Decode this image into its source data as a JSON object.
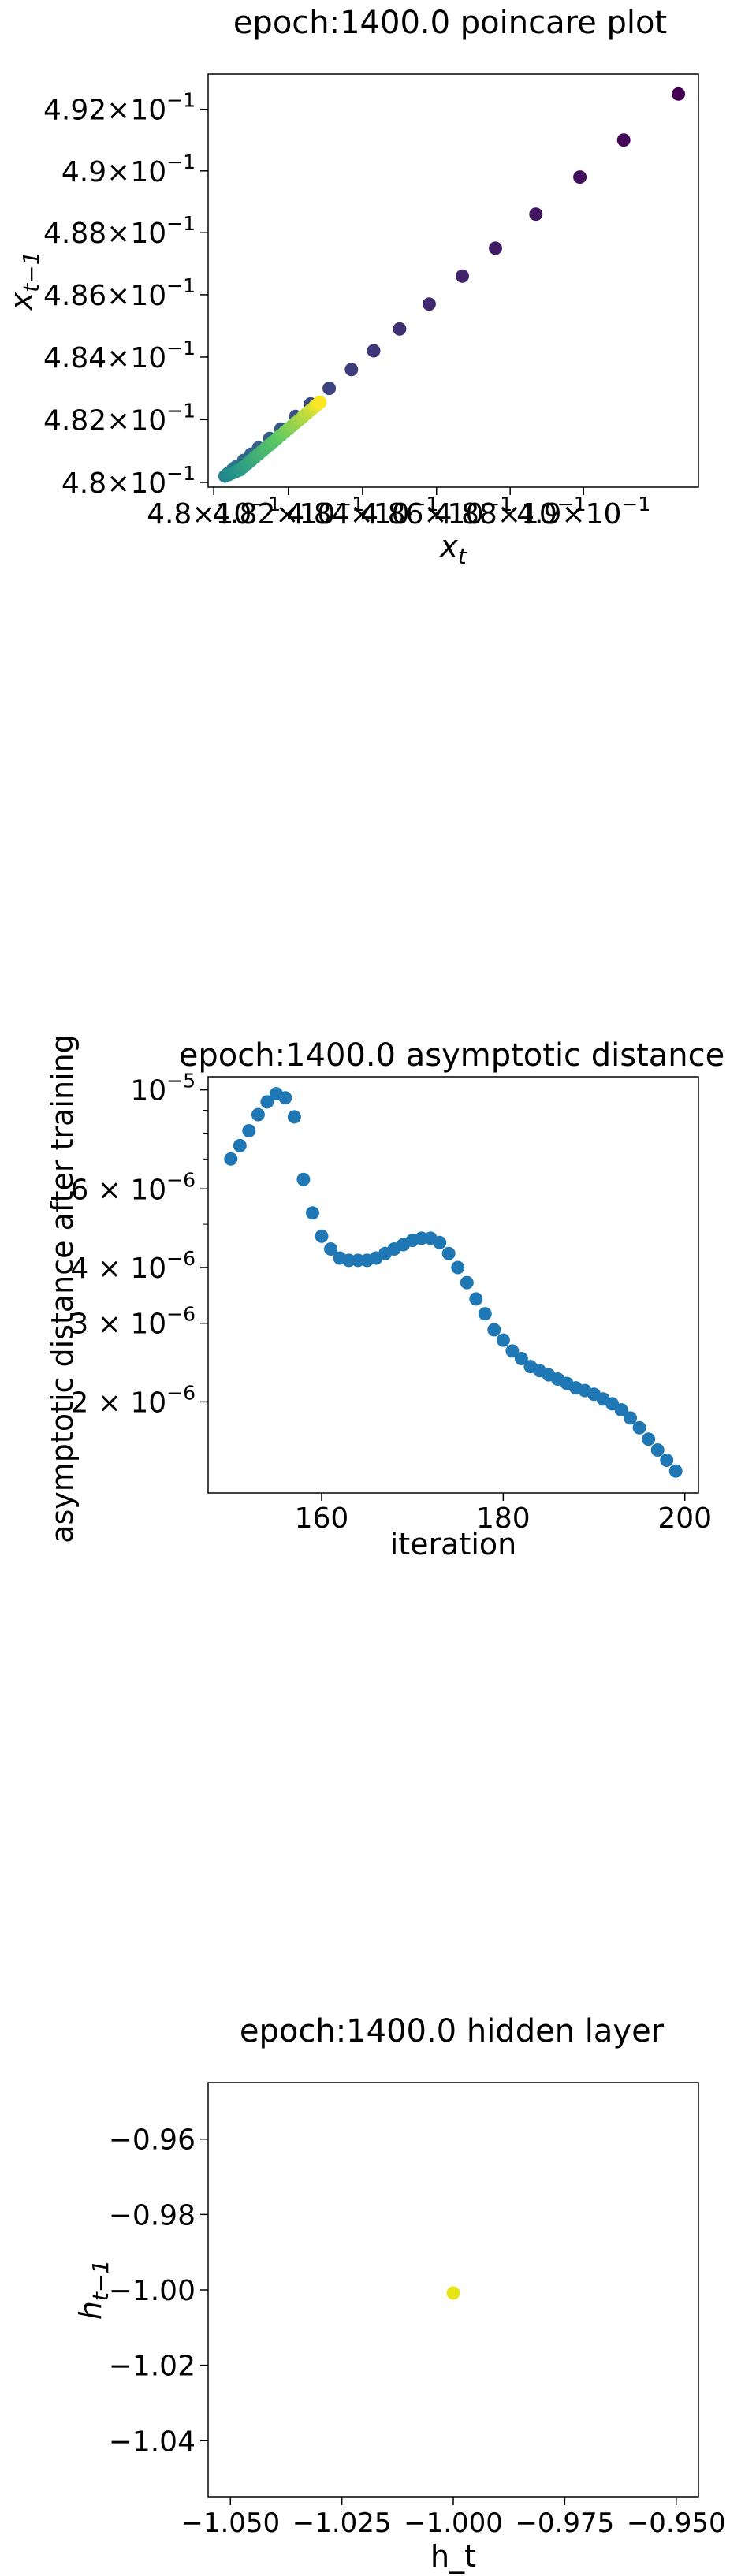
{
  "chart_data": [
    {
      "type": "scatter",
      "title": "epoch:1400.0 poincare plot",
      "xlabel": "x_t",
      "ylabel": "x_{t-1}",
      "xscale": "log",
      "yscale": "log",
      "xlim": [
        0.47985,
        0.49315
      ],
      "ylim": [
        0.47985,
        0.49315
      ],
      "xticks": [
        {
          "value": 0.48,
          "mant": "4.8",
          "exp": "−1"
        },
        {
          "value": 0.482,
          "mant": "4.82",
          "exp": "−1"
        },
        {
          "value": 0.484,
          "mant": "4.84",
          "exp": "−1"
        },
        {
          "value": 0.486,
          "mant": "4.86",
          "exp": "−1"
        },
        {
          "value": 0.488,
          "mant": "4.88",
          "exp": "−1"
        },
        {
          "value": 0.49,
          "mant": "4.9",
          "exp": "−1"
        }
      ],
      "yticks": [
        {
          "value": 0.48,
          "mant": "4.8",
          "exp": "−1"
        },
        {
          "value": 0.482,
          "mant": "4.82",
          "exp": "−1"
        },
        {
          "value": 0.484,
          "mant": "4.84",
          "exp": "−1"
        },
        {
          "value": 0.486,
          "mant": "4.86",
          "exp": "−1"
        },
        {
          "value": 0.488,
          "mant": "4.88",
          "exp": "−1"
        },
        {
          "value": 0.49,
          "mant": "4.9",
          "exp": "−1"
        },
        {
          "value": 0.492,
          "mant": "4.92",
          "exp": "−1"
        }
      ],
      "colormap": "viridis",
      "grid": false,
      "points": [
        [
          0.4926,
          0.4925
        ],
        [
          0.4911,
          0.491
        ],
        [
          0.4899,
          0.4898
        ],
        [
          0.4887,
          0.4886
        ],
        [
          0.4876,
          0.4875
        ],
        [
          0.4867,
          0.4866
        ],
        [
          0.4858,
          0.4857
        ],
        [
          0.485,
          0.4849
        ],
        [
          0.4843,
          0.4842
        ],
        [
          0.4837,
          0.4836
        ],
        [
          0.4831,
          0.483
        ],
        [
          0.4826,
          0.4825
        ],
        [
          0.4822,
          0.4821
        ],
        [
          0.4818,
          0.4817
        ],
        [
          0.4815,
          0.4814
        ],
        [
          0.4812,
          0.4811
        ],
        [
          0.481,
          0.4809
        ],
        [
          0.4808,
          0.4807
        ],
        [
          0.4806,
          0.4805
        ],
        [
          0.4805,
          0.4804
        ],
        [
          0.4804,
          0.4803
        ],
        [
          0.48035,
          0.48025
        ],
        [
          0.4803,
          0.4802
        ],
        [
          0.4804,
          0.48025
        ],
        [
          0.4805,
          0.4803
        ],
        [
          0.4806,
          0.48035
        ],
        [
          0.4807,
          0.4804
        ],
        [
          0.4808,
          0.4805
        ],
        [
          0.4809,
          0.4806
        ],
        [
          0.481,
          0.4807
        ],
        [
          0.4811,
          0.4808
        ],
        [
          0.4812,
          0.4809
        ],
        [
          0.4813,
          0.481
        ],
        [
          0.4814,
          0.4811
        ],
        [
          0.4815,
          0.4812
        ],
        [
          0.4816,
          0.4813
        ],
        [
          0.4817,
          0.4814
        ],
        [
          0.4818,
          0.4815
        ],
        [
          0.4819,
          0.4816
        ],
        [
          0.482,
          0.4817
        ],
        [
          0.4821,
          0.4818
        ],
        [
          0.4822,
          0.4819
        ],
        [
          0.4823,
          0.482
        ],
        [
          0.4824,
          0.4821
        ],
        [
          0.4825,
          0.4822
        ],
        [
          0.4826,
          0.4823
        ],
        [
          0.4827,
          0.4824
        ],
        [
          0.48275,
          0.48245
        ],
        [
          0.4828,
          0.4825
        ],
        [
          0.48285,
          0.48255
        ]
      ]
    },
    {
      "type": "scatter",
      "title": "epoch:1400.0 asymptotic distance",
      "xlabel": "iteration",
      "ylabel": "asymptotic distance after training",
      "yscale": "log",
      "xlim": [
        147.5,
        201.5
      ],
      "ylim": [
        1.25e-06,
        1.07e-05
      ],
      "xticks": [
        {
          "value": 160,
          "label": "160"
        },
        {
          "value": 180,
          "label": "180"
        },
        {
          "value": 200,
          "label": "200"
        }
      ],
      "yticks": [
        {
          "value": 1e-05,
          "mant": "10",
          "exp": "−5"
        },
        {
          "value": 6e-06,
          "mant": "6 × 10",
          "exp": "−6"
        },
        {
          "value": 4e-06,
          "mant": "4 × 10",
          "exp": "−6"
        },
        {
          "value": 3e-06,
          "mant": "3 × 10",
          "exp": "−6"
        },
        {
          "value": 2e-06,
          "mant": "2 × 10",
          "exp": "−6"
        }
      ],
      "color": "#1f77b4",
      "grid": false,
      "x": [
        150,
        151,
        152,
        153,
        154,
        155,
        156,
        157,
        158,
        159,
        160,
        161,
        162,
        163,
        164,
        165,
        166,
        167,
        168,
        169,
        170,
        171,
        172,
        173,
        174,
        175,
        176,
        177,
        178,
        179,
        180,
        181,
        182,
        183,
        184,
        185,
        186,
        187,
        188,
        189,
        190,
        191,
        192,
        193,
        194,
        195,
        196,
        197,
        198,
        199
      ],
      "y": [
        7e-06,
        7.5e-06,
        8.1e-06,
        8.8e-06,
        9.4e-06,
        9.8e-06,
        9.6e-06,
        8.7e-06,
        6.3e-06,
        5.3e-06,
        4.7e-06,
        4.4e-06,
        4.2e-06,
        4.15e-06,
        4.15e-06,
        4.15e-06,
        4.2e-06,
        4.3e-06,
        4.4e-06,
        4.5e-06,
        4.6e-06,
        4.65e-06,
        4.65e-06,
        4.55e-06,
        4.3e-06,
        4e-06,
        3.7e-06,
        3.4e-06,
        3.15e-06,
        2.9e-06,
        2.75e-06,
        2.6e-06,
        2.5e-06,
        2.4e-06,
        2.35e-06,
        2.3e-06,
        2.25e-06,
        2.2e-06,
        2.15e-06,
        2.12e-06,
        2.08e-06,
        2.03e-06,
        1.98e-06,
        1.92e-06,
        1.84e-06,
        1.75e-06,
        1.65e-06,
        1.56e-06,
        1.48e-06,
        1.4e-06
      ]
    },
    {
      "type": "scatter",
      "title": "epoch:1400.0 hidden layer",
      "xlabel": "h_t",
      "ylabel": "h_{t-1}",
      "xlim": [
        -1.055,
        -0.945
      ],
      "ylim": [
        -1.055,
        -0.945
      ],
      "xticks": [
        {
          "value": -1.05,
          "label": "−1.050"
        },
        {
          "value": -1.025,
          "label": "−1.025"
        },
        {
          "value": -1.0,
          "label": "−1.000"
        },
        {
          "value": -0.975,
          "label": "−0.975"
        },
        {
          "value": -0.95,
          "label": "−0.950"
        }
      ],
      "yticks": [
        {
          "value": -0.96,
          "label": "−0.96"
        },
        {
          "value": -0.98,
          "label": "−0.98"
        },
        {
          "value": -1.0,
          "label": "−1.00"
        },
        {
          "value": -1.02,
          "label": "−1.02"
        },
        {
          "value": -1.04,
          "label": "−1.04"
        }
      ],
      "color": "#e7e419",
      "grid": false,
      "points": [
        [
          -1.0,
          -1.0
        ]
      ]
    }
  ]
}
